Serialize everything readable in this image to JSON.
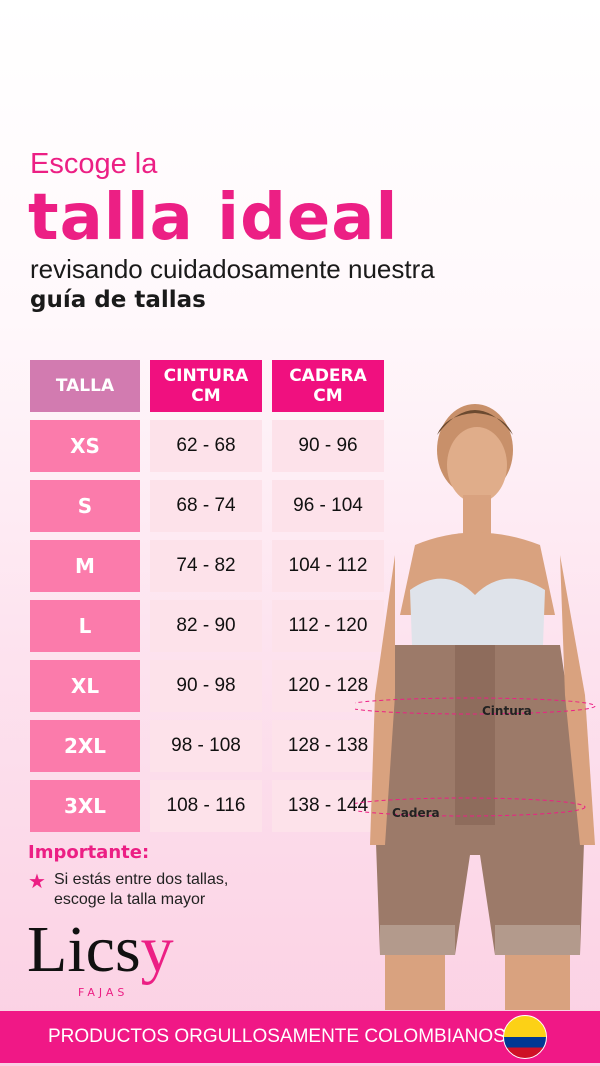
{
  "heading": {
    "line1": "Escoge la",
    "line2": "talla ideal",
    "line3": "revisando cuidadosamente nuestra",
    "line4": "guía de tallas"
  },
  "table": {
    "headers": [
      "TALLA",
      "CINTURA\nCM",
      "CADERA\nCM"
    ],
    "header_colors": [
      "#d27bb0",
      "#f0107f",
      "#f0107f"
    ],
    "rows": [
      {
        "size": "XS",
        "waist": "62 - 68",
        "hip": "90 - 96"
      },
      {
        "size": "S",
        "waist": "68 - 74",
        "hip": "96 - 104"
      },
      {
        "size": "M",
        "waist": "74 - 82",
        "hip": "104 - 112"
      },
      {
        "size": "L",
        "waist": "82 - 90",
        "hip": "112 - 120"
      },
      {
        "size": "XL",
        "waist": "90 - 98",
        "hip": "120 - 128"
      },
      {
        "size": "2XL",
        "waist": "98 - 108",
        "hip": "128 - 138"
      },
      {
        "size": "3XL",
        "waist": "108 - 116",
        "hip": "138 - 144"
      }
    ]
  },
  "photo": {
    "labels": {
      "waist": "Cintura",
      "hip": "Cadera"
    }
  },
  "note": {
    "title": "Importante:",
    "icon": "star-icon",
    "text_line1": "Si estás entre dos tallas,",
    "text_line2": "escoge la talla mayor"
  },
  "brand": {
    "name_main": "Lics",
    "name_accent": "y",
    "sub": "FAJAS"
  },
  "banner": {
    "text": "PRODUCTOS ORGULLOSAMENTE COLOMBIANOS",
    "icon": "colombia-flag-icon"
  },
  "colors": {
    "accent": "#ec1f84",
    "banner": "#f01886",
    "size_cell": "#fb7bab",
    "value_cell": "#fde2ea"
  }
}
